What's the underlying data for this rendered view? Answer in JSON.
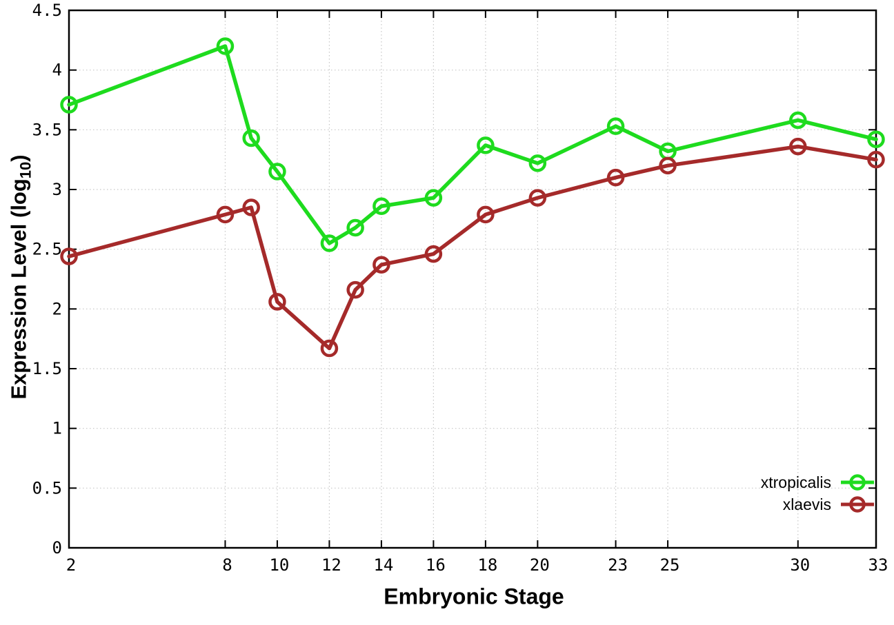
{
  "chart_data": {
    "type": "line",
    "title": "",
    "xlabel": "Embryonic Stage",
    "ylabel": "Expression Level (log10)",
    "ylabel_parts": {
      "main": "Expression Level (log",
      "sub": "10",
      "close": ")"
    },
    "x": [
      2,
      8,
      9,
      10,
      12,
      13,
      14,
      16,
      18,
      20,
      23,
      25,
      30,
      33
    ],
    "xlim": [
      2,
      33
    ],
    "x_tick_values": [
      2,
      8,
      10,
      12,
      14,
      16,
      18,
      20,
      23,
      25,
      30,
      33
    ],
    "x_tick_labels": [
      "2",
      "8",
      "10",
      "12",
      "14",
      "16",
      "18",
      "20",
      "23",
      "25",
      "30",
      "33"
    ],
    "ylim": [
      0,
      4.5
    ],
    "y_tick_values": [
      0,
      0.5,
      1,
      1.5,
      2,
      2.5,
      3,
      3.5,
      4,
      4.5
    ],
    "y_tick_labels": [
      "0",
      "0.5",
      "1",
      "1.5",
      "2",
      "2.5",
      "3",
      "3.5",
      "4",
      "4.5"
    ],
    "grid": true,
    "legend_position": "inside-bottom-right",
    "series": [
      {
        "name": "xtropicalis",
        "color": "#1edb1e",
        "marker": "open-circle",
        "values": [
          3.71,
          4.2,
          3.43,
          3.15,
          2.55,
          2.68,
          2.86,
          2.93,
          3.37,
          3.22,
          3.53,
          3.32,
          3.58,
          3.42
        ]
      },
      {
        "name": "xlaevis",
        "color": "#a52a2a",
        "marker": "open-circle",
        "values": [
          2.44,
          2.79,
          2.85,
          2.06,
          1.67,
          2.16,
          2.37,
          2.46,
          2.79,
          2.93,
          3.1,
          3.2,
          3.36,
          3.25
        ]
      }
    ],
    "colors": {
      "grid": "#c6c6c6",
      "axis": "#000000",
      "tick_text": "#000000"
    }
  }
}
